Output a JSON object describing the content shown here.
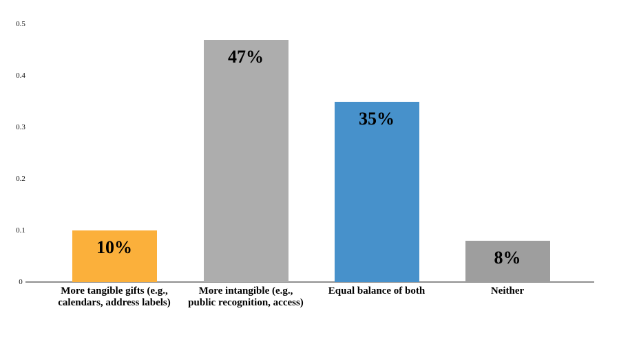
{
  "chart_data": {
    "type": "bar",
    "title": "",
    "xlabel": "",
    "ylabel": "",
    "categories": [
      "More tangible gifts (e.g., calendars, address labels)",
      "More intangible (e.g., public recognition, access)",
      "Equal balance of both",
      "Neither"
    ],
    "category_label_lines": [
      [
        "More tangible gifts (e.g.,",
        "calendars, address labels)"
      ],
      [
        "More intangible (e.g.,",
        "public recognition, access)"
      ],
      [
        "Equal balance of both"
      ],
      [
        "Neither"
      ]
    ],
    "values": [
      0.1,
      0.47,
      0.35,
      0.08
    ],
    "bar_labels": [
      "10%",
      "47%",
      "35%",
      "8%"
    ],
    "bar_colors": [
      "#FBB03B",
      "#ADADAD",
      "#4791CB",
      "#9E9E9E"
    ],
    "ylim": [
      0,
      0.5
    ],
    "yticks": [
      0,
      0.1,
      0.2,
      0.3,
      0.4,
      0.5
    ],
    "ytick_labels": [
      "0",
      "0.1",
      "0.2",
      "0.3",
      "0.4",
      "0.5"
    ],
    "grid": false,
    "legend": null,
    "axis_color": "#8F8F8F"
  }
}
